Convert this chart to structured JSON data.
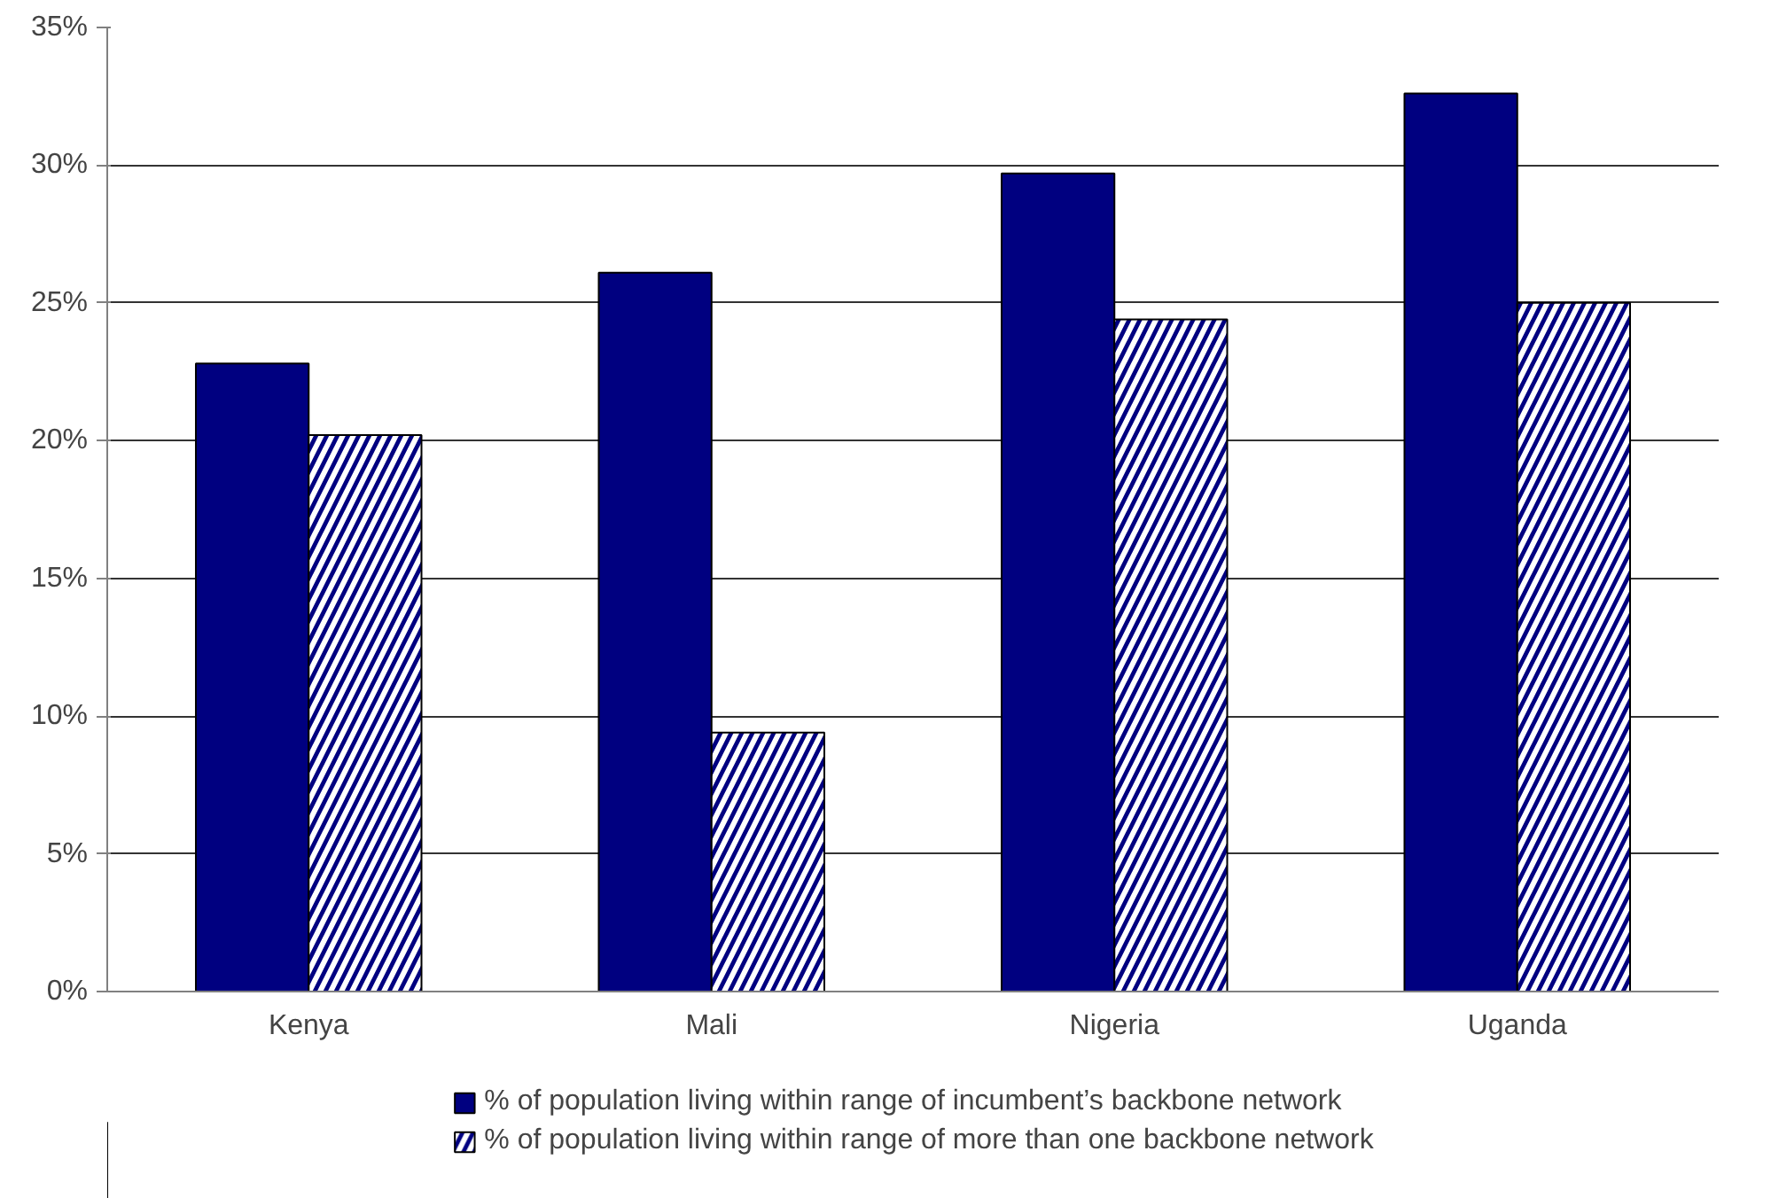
{
  "chart_data": {
    "type": "bar",
    "categories": [
      "Kenya",
      "Mali",
      "Nigeria",
      "Uganda"
    ],
    "series": [
      {
        "name": "% of population living within range of incumbent’s backbone network",
        "color": "#000080",
        "values": [
          22.8,
          26.1,
          29.7,
          32.6
        ]
      },
      {
        "name": "% of population living within range of more than one backbone network",
        "color": "#000080",
        "values": [
          20.2,
          9.4,
          24.4,
          25.0
        ]
      }
    ],
    "ylim": [
      0,
      35
    ],
    "yticks": [
      {
        "value": 0,
        "label": "0%"
      },
      {
        "value": 5,
        "label": "5%"
      },
      {
        "value": 10,
        "label": "10%"
      },
      {
        "value": 15,
        "label": "15%"
      },
      {
        "value": 20,
        "label": "20%"
      },
      {
        "value": 25,
        "label": "25%"
      },
      {
        "value": 30,
        "label": "30%"
      },
      {
        "value": 35,
        "label": "35%"
      }
    ],
    "grid": "y",
    "legend": "bottom"
  }
}
